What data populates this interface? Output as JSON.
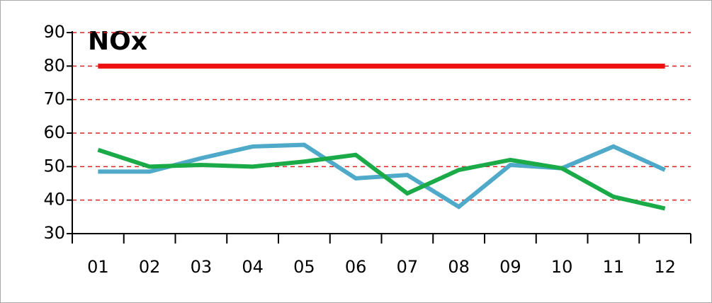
{
  "chart_data": {
    "type": "line",
    "title": "NOx",
    "categories": [
      "01",
      "02",
      "03",
      "04",
      "05",
      "06",
      "07",
      "08",
      "09",
      "10",
      "11",
      "12"
    ],
    "series": [
      {
        "color": "#ee1111",
        "values": [
          80,
          80,
          80,
          80,
          80,
          80,
          80,
          80,
          80,
          80,
          80,
          80
        ]
      },
      {
        "color": "#4fa9c8",
        "values": [
          48.5,
          48.5,
          52.5,
          56,
          56.5,
          46.5,
          47.5,
          38,
          50.5,
          49.5,
          56,
          49
        ]
      },
      {
        "color": "#1aab48",
        "values": [
          55,
          50,
          50.5,
          50,
          51.5,
          53.5,
          42,
          49,
          52,
          49.5,
          41,
          37.5
        ]
      }
    ],
    "ylim": [
      30,
      90
    ],
    "yticks": [
      30,
      40,
      50,
      60,
      70,
      80,
      90
    ],
    "grid": true,
    "grid_color": "#dd2222"
  }
}
